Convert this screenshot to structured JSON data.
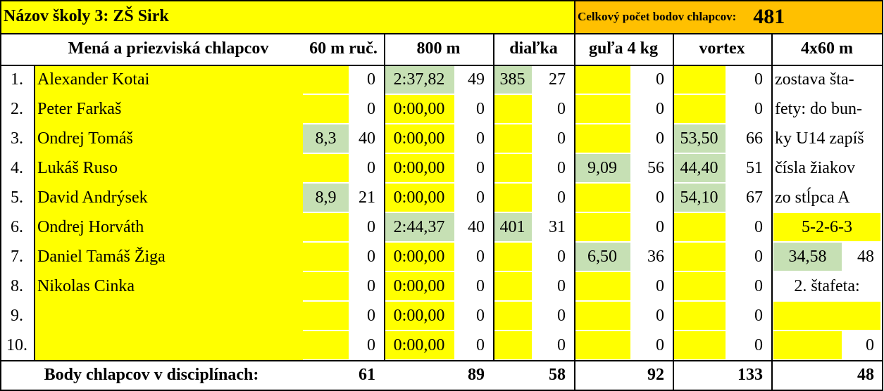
{
  "sheet": {
    "title": "Názov školy 3: ZŠ Sirk",
    "total_label": "Celkový počet bodov chlapcov:",
    "total": 481,
    "headers": [
      "Mená a priezviská chlapcov",
      "60 m ruč.",
      "800 m",
      "diaľka",
      "guľa 4 kg",
      "vortex",
      "4x60 m"
    ],
    "rows": [
      {
        "rank": "1.",
        "name": "Alexander Kotai",
        "results": [
          [
            null,
            0
          ],
          [
            "2:37,82",
            49
          ],
          [
            "385",
            27
          ],
          [
            null,
            0
          ],
          [
            null,
            0
          ]
        ],
        "relay": {
          "note": "zostava šta-"
        }
      },
      {
        "rank": "2.",
        "name": "Peter Farkaš",
        "results": [
          [
            null,
            0
          ],
          [
            "0:00,00",
            0
          ],
          [
            null,
            0
          ],
          [
            null,
            0
          ],
          [
            null,
            0
          ]
        ],
        "relay": {
          "note": "fety: do bun-"
        }
      },
      {
        "rank": "3.",
        "name": "Ondrej Tomáš",
        "results": [
          [
            "8,3",
            40
          ],
          [
            "0:00,00",
            0
          ],
          [
            null,
            0
          ],
          [
            null,
            0
          ],
          [
            "53,50",
            66
          ]
        ],
        "relay": {
          "note": "ky U14 zapíš"
        }
      },
      {
        "rank": "4.",
        "name": "Lukáš Ruso",
        "results": [
          [
            null,
            0
          ],
          [
            "0:00,00",
            0
          ],
          [
            null,
            0
          ],
          [
            "9,09",
            56
          ],
          [
            "44,40",
            51
          ]
        ],
        "relay": {
          "note": "čísla žiakov"
        }
      },
      {
        "rank": "5.",
        "name": "David Andrýsek",
        "results": [
          [
            "8,9",
            21
          ],
          [
            "0:00,00",
            0
          ],
          [
            null,
            0
          ],
          [
            null,
            0
          ],
          [
            "54,10",
            67
          ]
        ],
        "relay": {
          "note": "zo stĺpca A"
        }
      },
      {
        "rank": "6.",
        "name": "Ondrej Horváth",
        "results": [
          [
            null,
            0
          ],
          [
            "2:44,37",
            40
          ],
          [
            "401",
            31
          ],
          [
            null,
            0
          ],
          [
            null,
            0
          ]
        ],
        "relay": {
          "order": "5-2-6-3"
        }
      },
      {
        "rank": "7.",
        "name": "Daniel Tamáš Žiga",
        "results": [
          [
            null,
            0
          ],
          [
            "0:00,00",
            0
          ],
          [
            null,
            0
          ],
          [
            "6,50",
            36
          ],
          [
            null,
            0
          ]
        ],
        "relay": {
          "time": "34,58",
          "points": 48
        }
      },
      {
        "rank": "8.",
        "name": "Nikolas Cinka",
        "results": [
          [
            null,
            0
          ],
          [
            "0:00,00",
            0
          ],
          [
            null,
            0
          ],
          [
            null,
            0
          ],
          [
            null,
            0
          ]
        ],
        "relay": {
          "label": "2. štafeta:"
        }
      },
      {
        "rank": "9.",
        "name": null,
        "results": [
          [
            null,
            0
          ],
          [
            "0:00,00",
            0
          ],
          [
            null,
            0
          ],
          [
            null,
            0
          ],
          [
            null,
            0
          ]
        ],
        "relay": {
          "order": null
        }
      },
      {
        "rank": "10.",
        "name": null,
        "results": [
          [
            null,
            0
          ],
          [
            "0:00,00",
            0
          ],
          [
            null,
            0
          ],
          [
            null,
            0
          ],
          [
            null,
            0
          ]
        ],
        "relay": {
          "time": null,
          "points": 0
        }
      }
    ],
    "footer_label": "Body chlapcov v disciplínach:",
    "footer_totals": [
      61,
      89,
      58,
      92,
      133,
      48
    ],
    "colors": {
      "input": "#ffff00",
      "entered": "#c6e0b4",
      "total": "#ffc000"
    }
  }
}
